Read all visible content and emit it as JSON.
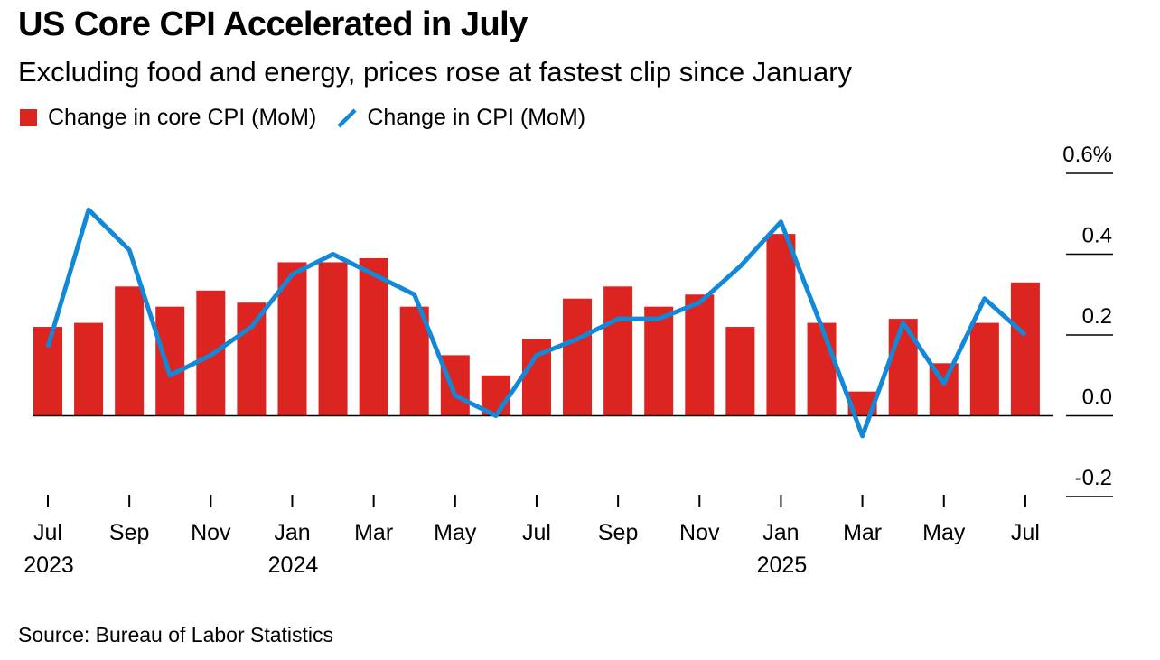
{
  "header": {
    "title": "US Core CPI Accelerated in July",
    "subtitle": "Excluding food and energy, prices rose at fastest clip since January"
  },
  "footer": {
    "source": "Source: Bureau of Labor Statistics"
  },
  "colors": {
    "core_bar": "#dc2420",
    "cpi_line": "#1289d8",
    "axis": "#000000"
  },
  "chart_data": {
    "type": "bar",
    "title": "US Core CPI Accelerated in July",
    "subtitle": "Excluding food and energy, prices rose at fastest clip since January",
    "legend_placement": "top-left",
    "grid": false,
    "ylim": [
      -0.2,
      0.6
    ],
    "y_ticks": [
      {
        "value": 0.6,
        "label": "0.6%"
      },
      {
        "value": 0.4,
        "label": "0.4"
      },
      {
        "value": 0.2,
        "label": "0.2"
      },
      {
        "value": 0.0,
        "label": "0.0"
      },
      {
        "value": -0.2,
        "label": "-0.2"
      }
    ],
    "categories": [
      "2023-07",
      "2023-08",
      "2023-09",
      "2023-10",
      "2023-11",
      "2023-12",
      "2024-01",
      "2024-02",
      "2024-03",
      "2024-04",
      "2024-05",
      "2024-06",
      "2024-07",
      "2024-08",
      "2024-09",
      "2024-10",
      "2024-11",
      "2024-12",
      "2025-01",
      "2025-02",
      "2025-03",
      "2025-04",
      "2025-05",
      "2025-06",
      "2025-07"
    ],
    "x_ticks": [
      {
        "index": 0,
        "label": "Jul",
        "year": "2023"
      },
      {
        "index": 2,
        "label": "Sep",
        "year": ""
      },
      {
        "index": 4,
        "label": "Nov",
        "year": ""
      },
      {
        "index": 6,
        "label": "Jan",
        "year": "2024"
      },
      {
        "index": 8,
        "label": "Mar",
        "year": ""
      },
      {
        "index": 10,
        "label": "May",
        "year": ""
      },
      {
        "index": 12,
        "label": "Jul",
        "year": ""
      },
      {
        "index": 14,
        "label": "Sep",
        "year": ""
      },
      {
        "index": 16,
        "label": "Nov",
        "year": ""
      },
      {
        "index": 18,
        "label": "Jan",
        "year": "2025"
      },
      {
        "index": 20,
        "label": "Mar",
        "year": ""
      },
      {
        "index": 22,
        "label": "May",
        "year": ""
      },
      {
        "index": 24,
        "label": "Jul",
        "year": ""
      }
    ],
    "series": [
      {
        "name": "Change in core CPI (MoM)",
        "type": "bar",
        "values": [
          0.22,
          0.23,
          0.32,
          0.27,
          0.31,
          0.28,
          0.38,
          0.38,
          0.39,
          0.27,
          0.15,
          0.1,
          0.19,
          0.29,
          0.32,
          0.27,
          0.3,
          0.22,
          0.45,
          0.23,
          0.06,
          0.24,
          0.13,
          0.23,
          0.33
        ]
      },
      {
        "name": "Change in CPI (MoM)",
        "type": "line",
        "values": [
          0.17,
          0.51,
          0.41,
          0.1,
          0.15,
          0.22,
          0.35,
          0.4,
          0.35,
          0.3,
          0.05,
          0.0,
          0.15,
          0.19,
          0.24,
          0.24,
          0.28,
          0.37,
          0.48,
          0.22,
          -0.05,
          0.23,
          0.08,
          0.29,
          0.2
        ]
      }
    ]
  }
}
